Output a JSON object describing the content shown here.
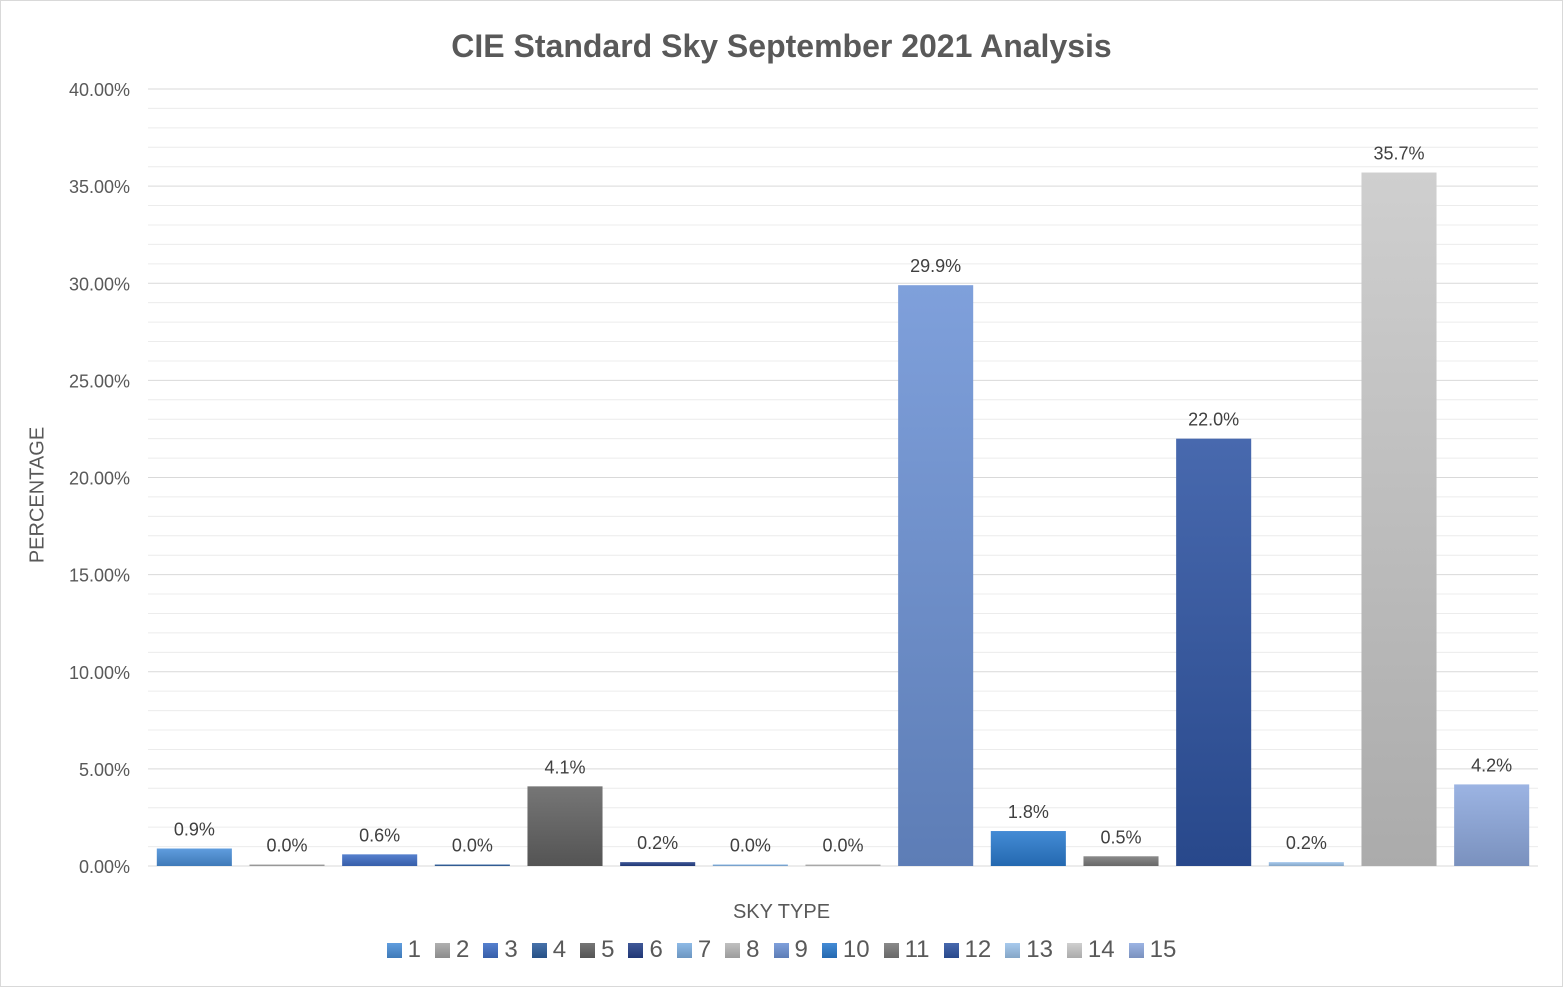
{
  "chart_data": {
    "type": "bar",
    "title": "CIE Standard Sky September 2021 Analysis",
    "xlabel": "SKY TYPE",
    "ylabel": "PERCENTAGE",
    "ylim": [
      0,
      40
    ],
    "y_ticks": [
      0,
      5,
      10,
      15,
      20,
      25,
      30,
      35,
      40
    ],
    "y_tick_labels": [
      "0.00%",
      "5.00%",
      "10.00%",
      "15.00%",
      "20.00%",
      "25.00%",
      "30.00%",
      "35.00%",
      "40.00%"
    ],
    "grid": true,
    "legend_position": "bottom",
    "categories": [
      "1",
      "2",
      "3",
      "4",
      "5",
      "6",
      "7",
      "8",
      "9",
      "10",
      "11",
      "12",
      "13",
      "14",
      "15"
    ],
    "values": [
      0.9,
      0.0,
      0.6,
      0.0,
      4.1,
      0.2,
      0.0,
      0.0,
      29.9,
      1.8,
      0.5,
      22.0,
      0.2,
      35.7,
      4.2
    ],
    "data_labels": [
      "0.9%",
      "0.0%",
      "0.6%",
      "0.0%",
      "4.1%",
      "0.2%",
      "0.0%",
      "0.0%",
      "29.9%",
      "1.8%",
      "0.5%",
      "22.0%",
      "0.2%",
      "35.7%",
      "4.2%"
    ],
    "colors": [
      "#4a90d9",
      "#a5a5a5",
      "#3f6fc7",
      "#2e5f9e",
      "#636363",
      "#26418a",
      "#7fb1e3",
      "#b7b7b7",
      "#6d93d6",
      "#2a7bcf",
      "#7a7a7a",
      "#2f55a3",
      "#9cc3ea",
      "#c9c9c9",
      "#8faadf"
    ]
  }
}
